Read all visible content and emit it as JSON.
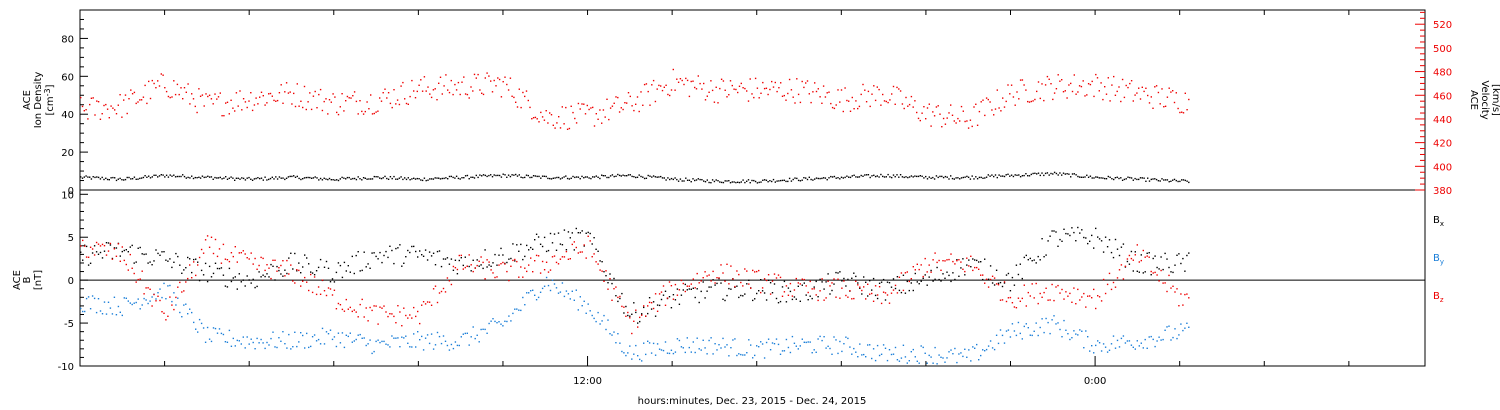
{
  "chart_data": [
    {
      "type": "scatter",
      "panel": "top",
      "ylabel_left": [
        "ACE",
        "Ion Density",
        "[cm^-3]"
      ],
      "ylabel_right": [
        "ACE",
        "Velocity",
        "[km/s]"
      ],
      "y_left_lim": [
        0,
        95
      ],
      "y_left_ticks": [
        0,
        20,
        40,
        60,
        80
      ],
      "y_right_lim": [
        380,
        532
      ],
      "y_right_ticks": [
        380,
        400,
        420,
        440,
        460,
        480,
        500,
        520
      ],
      "x_hours_range": [
        0,
        31.8
      ],
      "data_end_hour": 26.2,
      "series": [
        {
          "axis": "left",
          "color": "#000000",
          "x": [
            0,
            1,
            2,
            3,
            4,
            5,
            6,
            7,
            8,
            9,
            10,
            11,
            12,
            13,
            14,
            15,
            16,
            17,
            18,
            19,
            20,
            21,
            22,
            23,
            24,
            25,
            26
          ],
          "y": [
            7,
            6,
            8,
            7,
            6,
            7,
            6,
            7,
            6,
            7,
            8,
            7,
            7,
            8,
            6,
            5,
            5,
            6,
            7,
            8,
            7,
            7,
            8,
            9,
            7,
            6,
            5
          ]
        },
        {
          "axis": "right",
          "color": "#ee0000",
          "x": [
            0,
            1,
            2,
            3,
            4,
            5,
            6,
            7,
            8,
            9,
            10,
            11,
            12,
            13,
            14,
            15,
            16,
            17,
            18,
            19,
            20,
            21,
            22,
            23,
            24,
            25,
            26
          ],
          "y": [
            448,
            452,
            470,
            452,
            458,
            462,
            454,
            456,
            466,
            468,
            470,
            442,
            443,
            453,
            472,
            465,
            465,
            465,
            457,
            462,
            445,
            440,
            462,
            468,
            469,
            462,
            456
          ]
        }
      ]
    },
    {
      "type": "scatter",
      "panel": "bottom",
      "ylabel": [
        "ACE",
        "B",
        "[nT]"
      ],
      "ylim": [
        -10,
        10.5
      ],
      "y_ticks": [
        -10,
        -5,
        0,
        5,
        10
      ],
      "x_hours_range": [
        0,
        31.8
      ],
      "data_end_hour": 26.2,
      "x_tick_hours": [
        12,
        24
      ],
      "x_tick_labels": [
        "12:00",
        "0:00"
      ],
      "series": [
        {
          "name": "Bx",
          "color": "#000000",
          "x": [
            0,
            1,
            2,
            3,
            4,
            5,
            6,
            7,
            8,
            9,
            10,
            11,
            12,
            13,
            14,
            15,
            16,
            17,
            18,
            19,
            20,
            21,
            22,
            23,
            24,
            25,
            26
          ],
          "y": [
            3,
            3.5,
            2.5,
            1,
            0,
            2,
            1,
            3,
            3,
            2,
            3,
            4.5,
            5,
            -4,
            -2,
            -1,
            -1,
            -1.5,
            0,
            -1,
            0,
            2,
            0,
            5,
            5,
            2,
            2
          ]
        },
        {
          "name": "By",
          "color": "#1a7ed8",
          "x": [
            0,
            1,
            2,
            3,
            4,
            5,
            6,
            7,
            8,
            9,
            10,
            11,
            12,
            13,
            14,
            15,
            16,
            17,
            18,
            19,
            20,
            21,
            22,
            23,
            24,
            25,
            26
          ],
          "y": [
            -2.5,
            -3,
            -1,
            -6.5,
            -7,
            -7,
            -6.5,
            -7.5,
            -7,
            -7,
            -5,
            0,
            -3,
            -8.5,
            -7.5,
            -7.5,
            -8,
            -7.5,
            -7.5,
            -8.5,
            -8.5,
            -9,
            -6,
            -5,
            -7.5,
            -7,
            -6
          ]
        },
        {
          "name": "Bz",
          "color": "#ee0000",
          "x": [
            0,
            1,
            2,
            3,
            4,
            5,
            6,
            7,
            8,
            9,
            10,
            11,
            12,
            13,
            14,
            15,
            16,
            17,
            18,
            19,
            20,
            21,
            22,
            23,
            24,
            25,
            26
          ],
          "y": [
            4,
            3,
            -4,
            4,
            2,
            1,
            -2,
            -4,
            -4,
            2,
            1,
            2,
            4,
            -5,
            -1,
            1,
            0,
            -1,
            -1,
            -2,
            2,
            2,
            -2,
            -1,
            -2,
            3,
            -2
          ]
        }
      ]
    }
  ],
  "xlabel": "hours:minutes, Dec. 23, 2015 - Dec. 24, 2015",
  "legend_labels": {
    "bx": {
      "base": "B",
      "sub": "x"
    },
    "by": {
      "base": "B",
      "sub": "y"
    },
    "bz": {
      "base": "B",
      "sub": "z"
    }
  }
}
